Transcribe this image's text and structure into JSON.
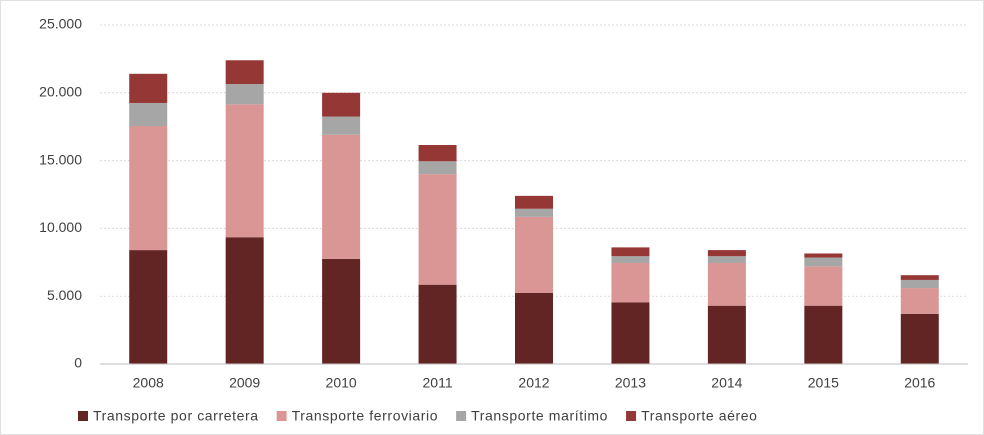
{
  "chart_data": {
    "type": "stacked_bar",
    "categories": [
      "2008",
      "2009",
      "2010",
      "2011",
      "2012",
      "2013",
      "2014",
      "2015",
      "2016"
    ],
    "series": [
      {
        "name": "Transporte por carretera",
        "color": "#632523",
        "values": [
          8400,
          9350,
          7750,
          5850,
          5250,
          4550,
          4300,
          4300,
          3700
        ]
      },
      {
        "name": "Transporte ferroviario",
        "color": "#d99694",
        "values": [
          9150,
          9800,
          9150,
          8150,
          5600,
          2900,
          3150,
          2900,
          1900
        ]
      },
      {
        "name": "Transporte marítimo",
        "color": "#a6a6a6",
        "values": [
          1700,
          1500,
          1350,
          950,
          600,
          500,
          500,
          650,
          600
        ]
      },
      {
        "name": "Transporte aéreo",
        "color": "#953735",
        "values": [
          2150,
          1750,
          1750,
          1200,
          950,
          650,
          450,
          300,
          350
        ]
      }
    ],
    "ylim": [
      0,
      25000
    ],
    "yticks": [
      0,
      {
        "value": 5000,
        "label": "5.000"
      },
      {
        "value": 10000,
        "label": "10.000"
      },
      {
        "value": 15000,
        "label": "15.000"
      },
      {
        "value": 20000,
        "label": "20.000"
      },
      {
        "value": 25000,
        "label": "25.000"
      }
    ],
    "grid": true,
    "legend": "bottom"
  }
}
